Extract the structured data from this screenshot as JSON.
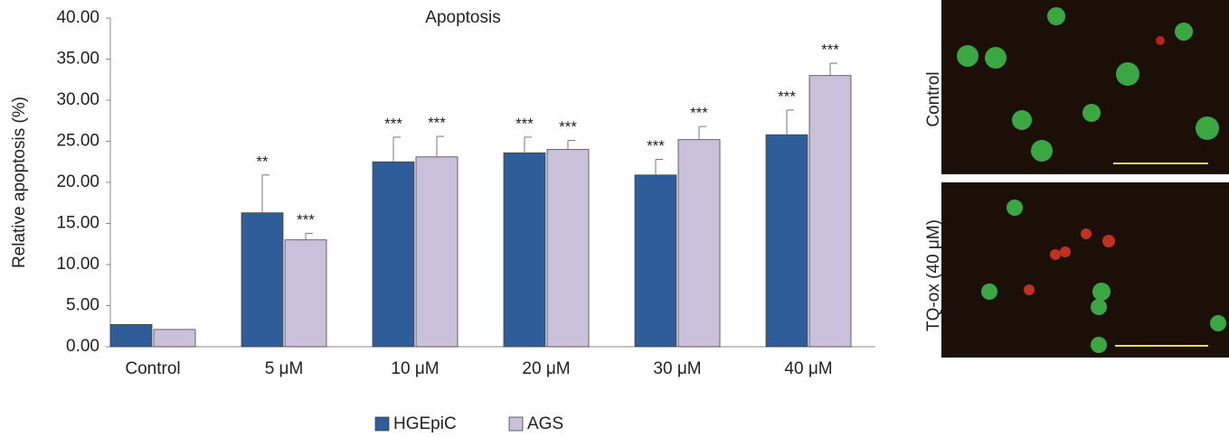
{
  "chart_data": {
    "type": "bar",
    "title": "Apoptosis",
    "y_label": "Relative apoptosis (%)",
    "categories": [
      "Control",
      "5 μM",
      "10 μM",
      "20 μM",
      "30 μM",
      "40 μM"
    ],
    "series": [
      {
        "name": "HGEpiC",
        "color": "#2f5d99",
        "values": [
          2.7,
          16.3,
          22.5,
          23.6,
          20.9,
          25.8
        ],
        "errors": [
          0,
          4.6,
          3.0,
          1.9,
          1.9,
          3.0
        ],
        "significance": [
          null,
          "**",
          "***",
          "***",
          "***",
          "***"
        ]
      },
      {
        "name": "AGS",
        "color": "#cbc0db",
        "values": [
          2.1,
          13.0,
          23.1,
          24.0,
          25.2,
          33.0
        ],
        "errors": [
          0,
          0.8,
          2.5,
          1.1,
          1.6,
          1.5
        ],
        "significance": [
          null,
          "***",
          "***",
          "***",
          "***",
          "***"
        ]
      }
    ],
    "ylim": [
      0,
      40
    ],
    "yticks": [
      {
        "value": 0,
        "label": "0.00"
      },
      {
        "value": 5,
        "label": "5.00"
      },
      {
        "value": 10,
        "label": "10.00"
      },
      {
        "value": 15,
        "label": "15.00"
      },
      {
        "value": 20,
        "label": "20.00"
      },
      {
        "value": 25,
        "label": "25.00"
      },
      {
        "value": 30,
        "label": "30.00"
      },
      {
        "value": 35,
        "label": "35.00"
      },
      {
        "value": 40,
        "label": "40.00"
      }
    ],
    "legend": "bottom"
  },
  "panels": [
    {
      "label": "Control"
    },
    {
      "label": "TQ-ox (40 μM)"
    }
  ]
}
